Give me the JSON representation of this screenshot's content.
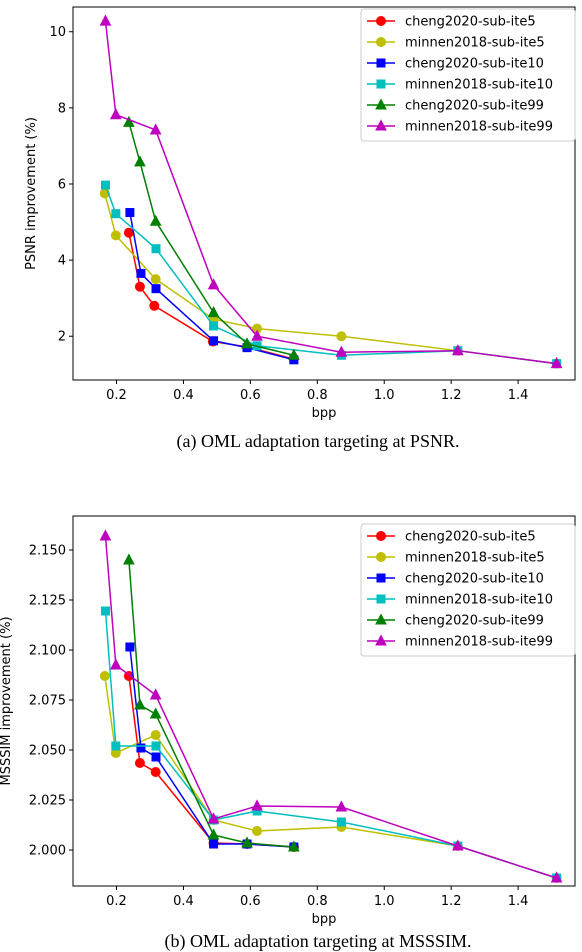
{
  "chart_data": [
    {
      "type": "line",
      "caption": "(a) OML adaptation targeting at PSNR.",
      "xlabel": "bpp",
      "ylabel": "PSNR improvement (%)",
      "xlim": [
        0.07,
        1.57
      ],
      "ylim": [
        0.85,
        10.65
      ],
      "xticks": [
        0.2,
        0.4,
        0.6,
        0.8,
        1.0,
        1.2,
        1.4
      ],
      "xtick_labels": [
        "0.2",
        "0.4",
        "0.6",
        "0.8",
        "1.0",
        "1.2",
        "1.4"
      ],
      "yticks": [
        2,
        4,
        6,
        8,
        10
      ],
      "ytick_labels": [
        "2",
        "4",
        "6",
        "8",
        "10"
      ],
      "legend_position": "upper-right",
      "series": [
        {
          "name": "cheng2020-sub-ite5",
          "color": "#ff0000",
          "marker": "circle",
          "x": [
            0.237,
            0.27,
            0.313,
            0.488,
            0.59,
            0.73
          ],
          "y": [
            4.72,
            3.3,
            2.8,
            1.86,
            1.72,
            1.4
          ]
        },
        {
          "name": "minnen2018-sub-ite5",
          "color": "#bfbf00",
          "marker": "circle",
          "x": [
            0.165,
            0.198,
            0.317,
            0.49,
            0.62,
            0.872,
            1.22,
            1.515
          ],
          "y": [
            5.75,
            4.65,
            3.5,
            2.45,
            2.2,
            2.0,
            1.62,
            1.28
          ]
        },
        {
          "name": "cheng2020-sub-ite10",
          "color": "#0000ff",
          "marker": "square",
          "x": [
            0.24,
            0.273,
            0.318,
            0.49,
            0.59,
            0.73
          ],
          "y": [
            5.25,
            3.65,
            3.25,
            1.88,
            1.7,
            1.38
          ]
        },
        {
          "name": "minnen2018-sub-ite10",
          "color": "#00bfbf",
          "marker": "square",
          "x": [
            0.167,
            0.198,
            0.318,
            0.49,
            0.62,
            0.872,
            1.22,
            1.515
          ],
          "y": [
            5.97,
            5.22,
            4.3,
            2.27,
            1.75,
            1.5,
            1.62,
            1.28
          ]
        },
        {
          "name": "cheng2020-sub-ite99",
          "color": "#008000",
          "marker": "triangle",
          "x": [
            0.237,
            0.27,
            0.317,
            0.49,
            0.59,
            0.73
          ],
          "y": [
            7.62,
            6.58,
            5.02,
            2.62,
            1.8,
            1.5
          ]
        },
        {
          "name": "minnen2018-sub-ite99",
          "color": "#bf00bf",
          "marker": "triangle",
          "x": [
            0.167,
            0.198,
            0.317,
            0.49,
            0.62,
            0.872,
            1.22,
            1.515
          ],
          "y": [
            10.28,
            7.82,
            7.42,
            3.35,
            2.0,
            1.58,
            1.62,
            1.28
          ]
        }
      ]
    },
    {
      "type": "line",
      "caption": "(b) OML adaptation targeting at MSSSIM.",
      "xlabel": "bpp",
      "ylabel": "MSSSIM improvement (%)",
      "xlim": [
        0.07,
        1.57
      ],
      "ylim": [
        1.982,
        2.167
      ],
      "xticks": [
        0.2,
        0.4,
        0.6,
        0.8,
        1.0,
        1.2,
        1.4
      ],
      "xtick_labels": [
        "0.2",
        "0.4",
        "0.6",
        "0.8",
        "1.0",
        "1.2",
        "1.4"
      ],
      "yticks": [
        2.0,
        2.025,
        2.05,
        2.075,
        2.1,
        2.125,
        2.15
      ],
      "ytick_labels": [
        "2.000",
        "2.025",
        "2.050",
        "2.075",
        "2.100",
        "2.125",
        "2.150"
      ],
      "legend_position": "upper-right",
      "series": [
        {
          "name": "cheng2020-sub-ite5",
          "color": "#ff0000",
          "marker": "circle",
          "x": [
            0.237,
            0.27,
            0.317,
            0.49,
            0.59,
            0.73
          ],
          "y": [
            2.087,
            2.0435,
            2.039,
            2.0035,
            2.003,
            2.0015
          ]
        },
        {
          "name": "minnen2018-sub-ite5",
          "color": "#bfbf00",
          "marker": "circle",
          "x": [
            0.165,
            0.198,
            0.317,
            0.49,
            0.62,
            0.872,
            1.22,
            1.515
          ],
          "y": [
            2.087,
            2.0485,
            2.0575,
            2.015,
            2.0095,
            2.0115,
            2.002,
            1.986
          ]
        },
        {
          "name": "cheng2020-sub-ite10",
          "color": "#0000ff",
          "marker": "square",
          "x": [
            0.24,
            0.273,
            0.318,
            0.49,
            0.59,
            0.73
          ],
          "y": [
            2.1015,
            2.051,
            2.0465,
            2.003,
            2.003,
            2.0015
          ]
        },
        {
          "name": "minnen2018-sub-ite10",
          "color": "#00bfbf",
          "marker": "square",
          "x": [
            0.167,
            0.198,
            0.318,
            0.49,
            0.62,
            0.872,
            1.22,
            1.515
          ],
          "y": [
            2.1195,
            2.052,
            2.052,
            2.015,
            2.0195,
            2.014,
            2.002,
            1.986
          ]
        },
        {
          "name": "cheng2020-sub-ite99",
          "color": "#008000",
          "marker": "triangle",
          "x": [
            0.237,
            0.27,
            0.317,
            0.49,
            0.59,
            0.73
          ],
          "y": [
            2.145,
            2.0725,
            2.068,
            2.0075,
            2.0035,
            2.0015
          ]
        },
        {
          "name": "minnen2018-sub-ite99",
          "color": "#bf00bf",
          "marker": "triangle",
          "x": [
            0.167,
            0.198,
            0.317,
            0.49,
            0.62,
            0.872,
            1.22,
            1.515
          ],
          "y": [
            2.157,
            2.0925,
            2.0775,
            2.0155,
            2.022,
            2.0215,
            2.002,
            1.986
          ]
        }
      ]
    }
  ]
}
